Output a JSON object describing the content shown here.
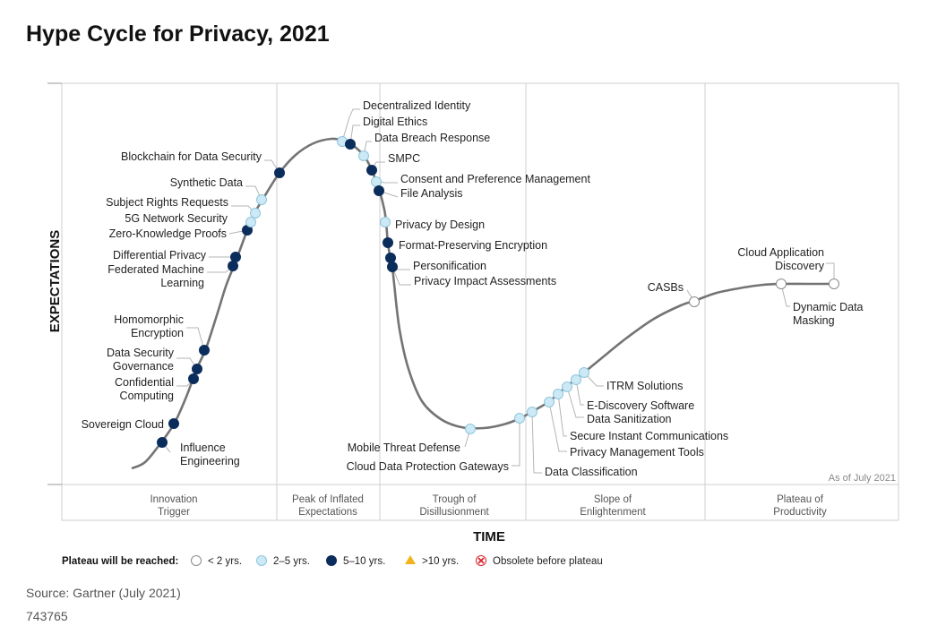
{
  "title": "Hype Cycle for Privacy, 2021",
  "y_axis_label": "EXPECTATIONS",
  "x_axis_label": "TIME",
  "as_of": "As of July 2021",
  "phases": [
    {
      "line1": "Innovation",
      "line2": "Trigger"
    },
    {
      "line1": "Peak of Inflated",
      "line2": "Expectations"
    },
    {
      "line1": "Trough of",
      "line2": "Disillusionment"
    },
    {
      "line1": "Slope of",
      "line2": "Enlightenment"
    },
    {
      "line1": "Plateau of",
      "line2": "Productivity"
    }
  ],
  "legend": {
    "title": "Plateau will be reached:",
    "items": [
      {
        "key": "lt2",
        "label": "< 2 yrs."
      },
      {
        "key": "2to5",
        "label": "2–5 yrs."
      },
      {
        "key": "5to10",
        "label": "5–10 yrs."
      },
      {
        "key": "gt10",
        "label": ">10 yrs."
      },
      {
        "key": "obsolete",
        "label": "Obsolete before plateau"
      }
    ]
  },
  "colors": {
    "lt2": "#ffffff",
    "2to5": "#cce9f5",
    "5to10": "#0b2d5c",
    "gt10": "#f2b21b",
    "obsolete": "#d7262b",
    "curve": "#747474",
    "grid": "#cfcfcf"
  },
  "technologies": [
    {
      "name": "Influence Engineering",
      "lines": [
        "Influence",
        "Engineering"
      ],
      "plateau": "5to10"
    },
    {
      "name": "Sovereign Cloud",
      "lines": [
        "Sovereign Cloud"
      ],
      "plateau": "5to10"
    },
    {
      "name": "Confidential Computing",
      "lines": [
        "Confidential",
        "Computing"
      ],
      "plateau": "5to10"
    },
    {
      "name": "Data Security Governance",
      "lines": [
        "Data Security",
        "Governance"
      ],
      "plateau": "5to10"
    },
    {
      "name": "Homomorphic Encryption",
      "lines": [
        "Homomorphic",
        "Encryption"
      ],
      "plateau": "5to10"
    },
    {
      "name": "Federated Machine Learning",
      "lines": [
        "Federated Machine",
        "Learning"
      ],
      "plateau": "5to10"
    },
    {
      "name": "Differential Privacy",
      "lines": [
        "Differential Privacy"
      ],
      "plateau": "5to10"
    },
    {
      "name": "Zero-Knowledge Proofs",
      "lines": [
        "Zero-Knowledge Proofs"
      ],
      "plateau": "5to10"
    },
    {
      "name": "5G Network Security",
      "lines": [
        "5G Network Security"
      ],
      "plateau": "2to5"
    },
    {
      "name": "Subject Rights Requests",
      "lines": [
        "Subject Rights Requests"
      ],
      "plateau": "2to5"
    },
    {
      "name": "Synthetic Data",
      "lines": [
        "Synthetic Data"
      ],
      "plateau": "2to5"
    },
    {
      "name": "Blockchain for Data Security",
      "lines": [
        "Blockchain for Data Security"
      ],
      "plateau": "5to10"
    },
    {
      "name": "Decentralized Identity",
      "lines": [
        "Decentralized Identity"
      ],
      "plateau": "2to5"
    },
    {
      "name": "Digital Ethics",
      "lines": [
        "Digital Ethics"
      ],
      "plateau": "5to10"
    },
    {
      "name": "Data Breach Response",
      "lines": [
        "Data Breach Response"
      ],
      "plateau": "2to5"
    },
    {
      "name": "SMPC",
      "lines": [
        "SMPC"
      ],
      "plateau": "5to10"
    },
    {
      "name": "Consent and Preference Management",
      "lines": [
        "Consent and Preference Management"
      ],
      "plateau": "2to5"
    },
    {
      "name": "File Analysis",
      "lines": [
        "File Analysis"
      ],
      "plateau": "5to10"
    },
    {
      "name": "Privacy by Design",
      "lines": [
        "Privacy by Design"
      ],
      "plateau": "2to5"
    },
    {
      "name": "Format-Preserving Encryption",
      "lines": [
        "Format-Preserving Encryption"
      ],
      "plateau": "5to10"
    },
    {
      "name": "Personification",
      "lines": [
        "Personification"
      ],
      "plateau": "5to10"
    },
    {
      "name": "Privacy Impact Assessments",
      "lines": [
        "Privacy Impact Assessments"
      ],
      "plateau": "5to10"
    },
    {
      "name": "Mobile Threat Defense",
      "lines": [
        "Mobile Threat Defense"
      ],
      "plateau": "2to5"
    },
    {
      "name": "Cloud Data Protection Gateways",
      "lines": [
        "Cloud Data Protection Gateways"
      ],
      "plateau": "2to5"
    },
    {
      "name": "Data Classification",
      "lines": [
        "Data Classification"
      ],
      "plateau": "2to5"
    },
    {
      "name": "Privacy Management Tools",
      "lines": [
        "Privacy Management Tools"
      ],
      "plateau": "2to5"
    },
    {
      "name": "Secure Instant Communications",
      "lines": [
        "Secure Instant Communications"
      ],
      "plateau": "2to5"
    },
    {
      "name": "Data Sanitization",
      "lines": [
        "Data Sanitization"
      ],
      "plateau": "2to5"
    },
    {
      "name": "E-Discovery Software",
      "lines": [
        "E-Discovery Software"
      ],
      "plateau": "2to5"
    },
    {
      "name": "ITRM Solutions",
      "lines": [
        "ITRM Solutions"
      ],
      "plateau": "2to5"
    },
    {
      "name": "CASBs",
      "lines": [
        "CASBs"
      ],
      "plateau": "lt2"
    },
    {
      "name": "Dynamic Data Masking",
      "lines": [
        "Dynamic Data",
        "Masking"
      ],
      "plateau": "lt2"
    },
    {
      "name": "Cloud Application Discovery",
      "lines": [
        "Cloud Application",
        "Discovery"
      ],
      "plateau": "lt2"
    }
  ],
  "source": "Source: Gartner (July 2021)",
  "doc_id": "743765"
}
